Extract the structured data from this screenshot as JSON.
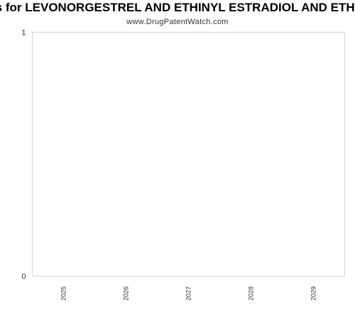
{
  "chart_data": {
    "type": "bar",
    "title": "ns for LEVONORGESTREL AND ETHINYL ESTRADIOL AND ETHIN",
    "subtitle": "www.DrugPatentWatch.com",
    "categories": [
      "2025",
      "2026",
      "2027",
      "2028",
      "2029"
    ],
    "values": [
      0,
      0,
      0,
      0,
      0
    ],
    "ylim": [
      0,
      1
    ],
    "yticks": [
      "0",
      "1"
    ],
    "xlabel": "",
    "ylabel": "",
    "grid": false,
    "colors": {
      "frame": "#d4d4d4",
      "text": "#333333",
      "bar": "#4f81bd"
    }
  }
}
